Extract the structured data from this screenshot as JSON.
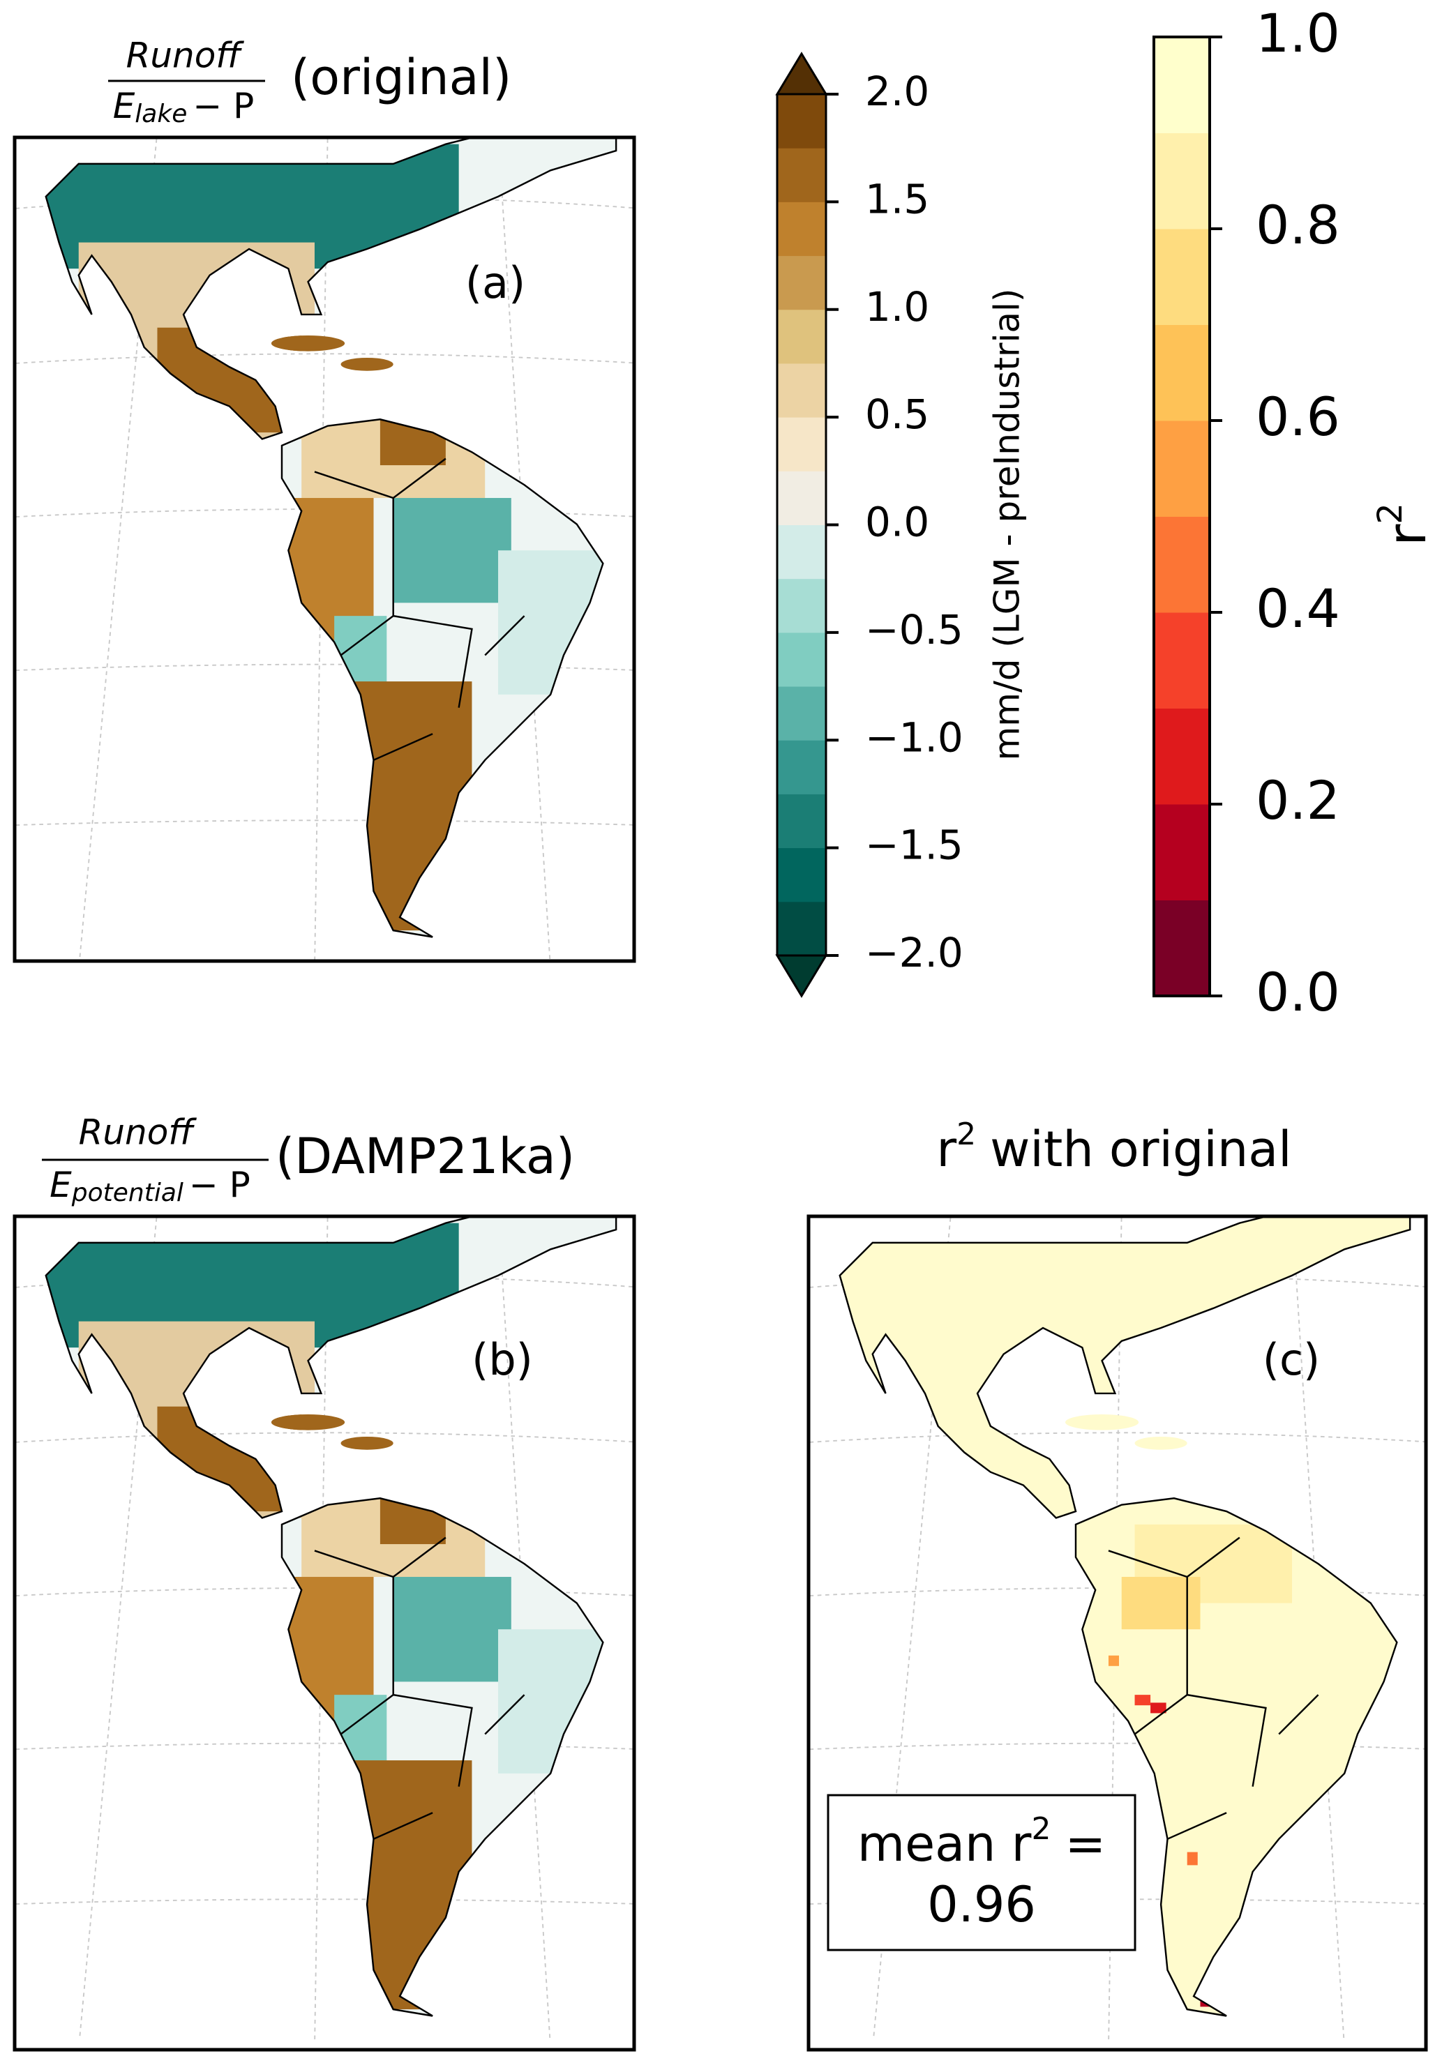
{
  "panels": [
    {
      "title": {
        "numerator": "Runoff",
        "denominator": "E",
        "denominator_sub": "lake",
        "denominator_rest": "− P",
        "suffix": "(original)"
      },
      "label": "(a)"
    },
    {
      "title": {
        "numerator": "Runoff",
        "denominator": "E",
        "denominator_sub": "potential",
        "denominator_rest": "− P",
        "suffix": "(DAMP21ka)"
      },
      "label": "(b)"
    },
    {
      "title": {
        "base": "r",
        "sup": "2",
        "rest": "with original"
      },
      "label": "(c)",
      "annotation": {
        "base": "mean r",
        "sup": "2",
        "rest": "=",
        "value": 0.96
      }
    }
  ],
  "colorbars": [
    {
      "label": "mm/d (LGM - preIndustrial)",
      "lim": [
        -2,
        2
      ],
      "ticks": [
        {
          "value": -2,
          "label": "−2.0"
        },
        {
          "value": -1.5,
          "label": "−1.5"
        },
        {
          "value": -1,
          "label": "−1.0"
        },
        {
          "value": -0.5,
          "label": "−0.5"
        },
        {
          "value": 0,
          "label": "0.0"
        },
        {
          "value": 0.5,
          "label": "0.5"
        },
        {
          "value": 1,
          "label": "1.0"
        },
        {
          "value": 1.5,
          "label": "1.5"
        },
        {
          "value": 2,
          "label": "2.0"
        }
      ],
      "levels": [
        -2,
        -1.75,
        -1.5,
        -1.25,
        -1,
        -0.75,
        -0.5,
        -0.25,
        0,
        0.25,
        0.5,
        0.75,
        1,
        1.25,
        1.5,
        1.75,
        2
      ],
      "colors": [
        "#014d44",
        "#01665e",
        "#1b7e75",
        "#35978f",
        "#5ab2a8",
        "#80cdc1",
        "#a7ddd4",
        "#d3ece8",
        "#f1ede3",
        "#f6e6c8",
        "#ecd3a4",
        "#dfc27d",
        "#c99a4f",
        "#bf812d",
        "#a0661c",
        "#7f4a0c"
      ],
      "extend_colors": [
        "#003c30",
        "#543005"
      ]
    },
    {
      "label": {
        "base": "r",
        "sup": "2"
      },
      "lim": [
        0,
        1
      ],
      "ticks": [
        {
          "value": 0,
          "label": "0.0"
        },
        {
          "value": 0.2,
          "label": "0.2"
        },
        {
          "value": 0.4,
          "label": "0.4"
        },
        {
          "value": 0.6,
          "label": "0.6"
        },
        {
          "value": 0.8,
          "label": "0.8"
        },
        {
          "value": 1,
          "label": "1.0"
        }
      ],
      "levels": [
        0,
        0.1,
        0.2,
        0.3,
        0.4,
        0.5,
        0.6,
        0.7,
        0.8,
        0.9,
        1
      ],
      "colors": [
        "#7a0026",
        "#b5001f",
        "#df1a1c",
        "#f5412a",
        "#fc7535",
        "#fea043",
        "#fec257",
        "#fedc7f",
        "#fff0ac",
        "#ffffcc"
      ]
    }
  ]
}
